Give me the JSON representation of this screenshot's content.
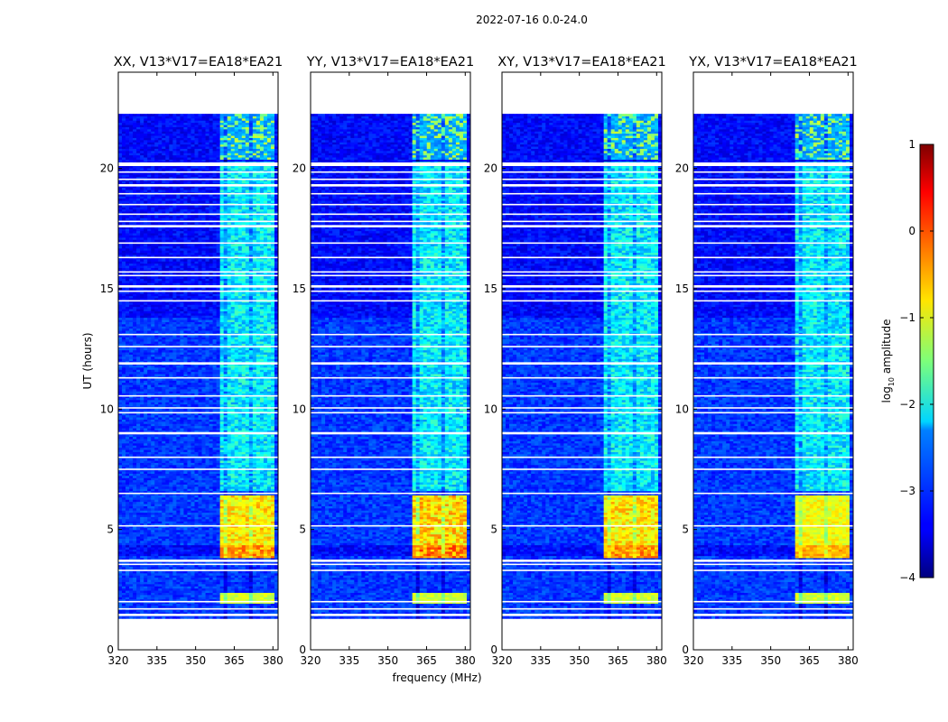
{
  "chart_data": {
    "type": "heatmap",
    "suptitle": "2022-07-16 0.0-24.0",
    "panels": [
      {
        "title": "XX, V13*V17=EA18*EA21",
        "pol": "XX"
      },
      {
        "title": "YY, V13*V17=EA18*EA21",
        "pol": "YY"
      },
      {
        "title": "XY, V13*V17=EA18*EA21",
        "pol": "XY"
      },
      {
        "title": "YX, V13*V17=EA18*EA21",
        "pol": "YX"
      }
    ],
    "xlabel": "frequency (MHz)",
    "ylabel": "UT (hours)",
    "xlim": [
      320,
      382
    ],
    "ylim": [
      0,
      24
    ],
    "xticks": [
      320,
      335,
      350,
      365,
      380
    ],
    "xtick_labels": [
      "320",
      "335",
      "350",
      "365",
      "380"
    ],
    "yticks": [
      0,
      5,
      10,
      15,
      20
    ],
    "ytick_labels": [
      "0",
      "5",
      "10",
      "15",
      "20"
    ],
    "data_time_range": [
      1.3,
      22.2
    ],
    "rfi_band_mhz": [
      359.5,
      380.5
    ],
    "bright_time_block_1": [
      3.8,
      6.4
    ],
    "bright_time_block_2": [
      1.9,
      2.3
    ],
    "flag_gaps_hours": [
      1.45,
      1.7,
      2.0,
      3.3,
      3.55,
      3.7,
      5.15,
      6.5,
      7.5,
      8.0,
      9.0,
      9.85,
      10.05,
      10.55,
      11.3,
      11.9,
      12.6,
      13.1,
      14.5,
      14.9,
      15.1,
      15.55,
      15.7,
      16.3,
      16.9,
      17.6,
      17.8,
      18.1,
      18.5,
      18.95,
      19.3,
      19.55,
      19.85
    ],
    "colorbar": {
      "label": "log",
      "label_sub": "10",
      "label_rest": " amplitude",
      "range": [
        -4,
        1
      ],
      "ticks": [
        -4,
        -3,
        -2,
        -1,
        0,
        1
      ],
      "tick_labels": [
        "−4",
        "−3",
        "−2",
        "−1",
        "0",
        "1"
      ]
    }
  }
}
